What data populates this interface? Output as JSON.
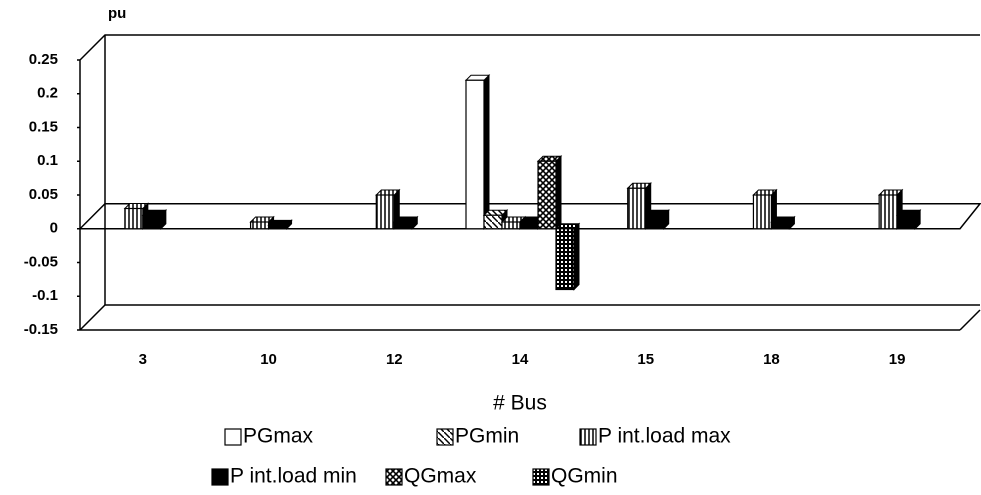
{
  "chart_data": {
    "type": "bar",
    "y_label": "pu",
    "x_label": "# Bus",
    "categories": [
      "3",
      "10",
      "12",
      "14",
      "15",
      "18",
      "19"
    ],
    "series": [
      {
        "name": "PGmax",
        "color": "#ffffff",
        "pattern": "none",
        "values": [
          null,
          null,
          null,
          0.22,
          null,
          null,
          null
        ]
      },
      {
        "name": "PGmin",
        "color": "#ffffff",
        "pattern": "diagonal",
        "values": [
          null,
          null,
          null,
          0.02,
          null,
          null,
          null
        ]
      },
      {
        "name": "P int.load max",
        "color": "#ffffff",
        "pattern": "vertical",
        "values": [
          0.03,
          0.01,
          0.05,
          0.01,
          0.06,
          0.05,
          0.05
        ]
      },
      {
        "name": "P int.load min",
        "color": "#000000",
        "pattern": "none",
        "values": [
          0.02,
          0.005,
          0.01,
          0.01,
          0.02,
          0.01,
          0.02
        ]
      },
      {
        "name": "QGmax",
        "color": "#ffffff",
        "pattern": "cross",
        "values": [
          null,
          null,
          null,
          0.1,
          null,
          null,
          null
        ]
      },
      {
        "name": "QGmin",
        "color": "#ffffff",
        "pattern": "grid",
        "values": [
          null,
          null,
          null,
          -0.09,
          null,
          null,
          null
        ]
      }
    ],
    "ylim": [
      -0.15,
      0.25
    ],
    "yticks": [
      -0.15,
      -0.1,
      -0.05,
      0,
      0.05,
      0.1,
      0.15,
      0.2,
      0.25
    ]
  }
}
